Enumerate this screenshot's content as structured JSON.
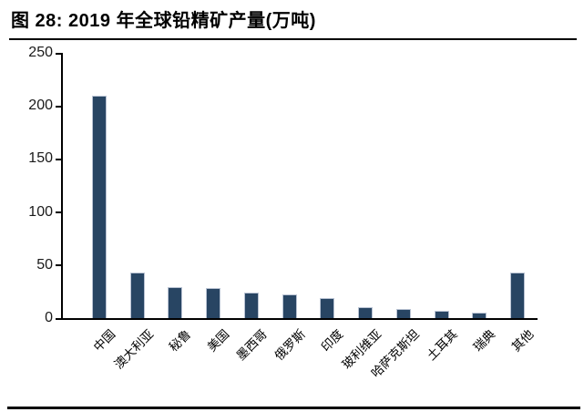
{
  "header": {
    "title": "图 28: 2019 年全球铅精矿产量(万吨)"
  },
  "chart_data": {
    "type": "bar",
    "title": "2019 年全球铅精矿产量(万吨)",
    "categories": [
      "中国",
      "澳大利亚",
      "秘鲁",
      "美国",
      "墨西哥",
      "俄罗斯",
      "印度",
      "玻利维亚",
      "哈萨克斯坦",
      "土耳其",
      "瑞典",
      "其他"
    ],
    "values": [
      210,
      43,
      29,
      28,
      24,
      22,
      19,
      10,
      9,
      7,
      5,
      43
    ],
    "xlabel": "",
    "ylabel": "",
    "ylim": [
      0,
      250
    ],
    "yticks": [
      0,
      50,
      100,
      150,
      200,
      250
    ],
    "grid": false,
    "legend": "none",
    "bar_color": "#284563",
    "bar_edge_color": "#b9c3d3",
    "axis_color": "#000000",
    "text_color": "#1a1a1a"
  }
}
